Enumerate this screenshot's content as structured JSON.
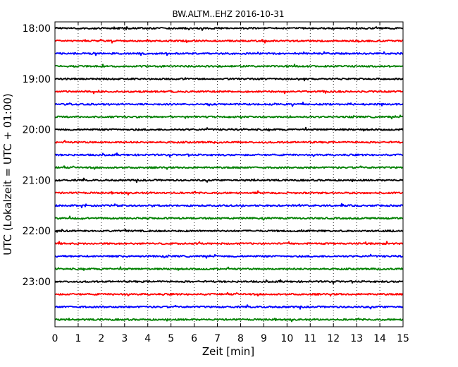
{
  "chart_data": {
    "type": "line",
    "title": "BW.ALTM..EHZ 2016-10-31",
    "xlabel": "Zeit  [min]",
    "ylabel": "UTC (Lokalzeit = UTC + 01:00)",
    "xlim": [
      0,
      15
    ],
    "x_ticks": [
      "0",
      "1",
      "2",
      "3",
      "4",
      "5",
      "6",
      "7",
      "8",
      "9",
      "10",
      "11",
      "12",
      "13",
      "14",
      "15"
    ],
    "y_ticks": [
      "18:00",
      "19:00",
      "20:00",
      "21:00",
      "22:00",
      "23:00"
    ],
    "grid": "vertical dotted",
    "trace_minutes_per_line": 15,
    "trace_colors": [
      "#000000",
      "#ff0000",
      "#0000ff",
      "#008000"
    ],
    "traces": [
      {
        "start": "18:00"
      },
      {
        "start": "18:15"
      },
      {
        "start": "18:30"
      },
      {
        "start": "18:45"
      },
      {
        "start": "19:00"
      },
      {
        "start": "19:15"
      },
      {
        "start": "19:30"
      },
      {
        "start": "19:45"
      },
      {
        "start": "20:00"
      },
      {
        "start": "20:15"
      },
      {
        "start": "20:30"
      },
      {
        "start": "20:45"
      },
      {
        "start": "21:00"
      },
      {
        "start": "21:15"
      },
      {
        "start": "21:30"
      },
      {
        "start": "21:45"
      },
      {
        "start": "22:00"
      },
      {
        "start": "22:15"
      },
      {
        "start": "22:30"
      },
      {
        "start": "22:45"
      },
      {
        "start": "23:00"
      },
      {
        "start": "23:15"
      },
      {
        "start": "23:30"
      },
      {
        "start": "23:45"
      }
    ]
  }
}
